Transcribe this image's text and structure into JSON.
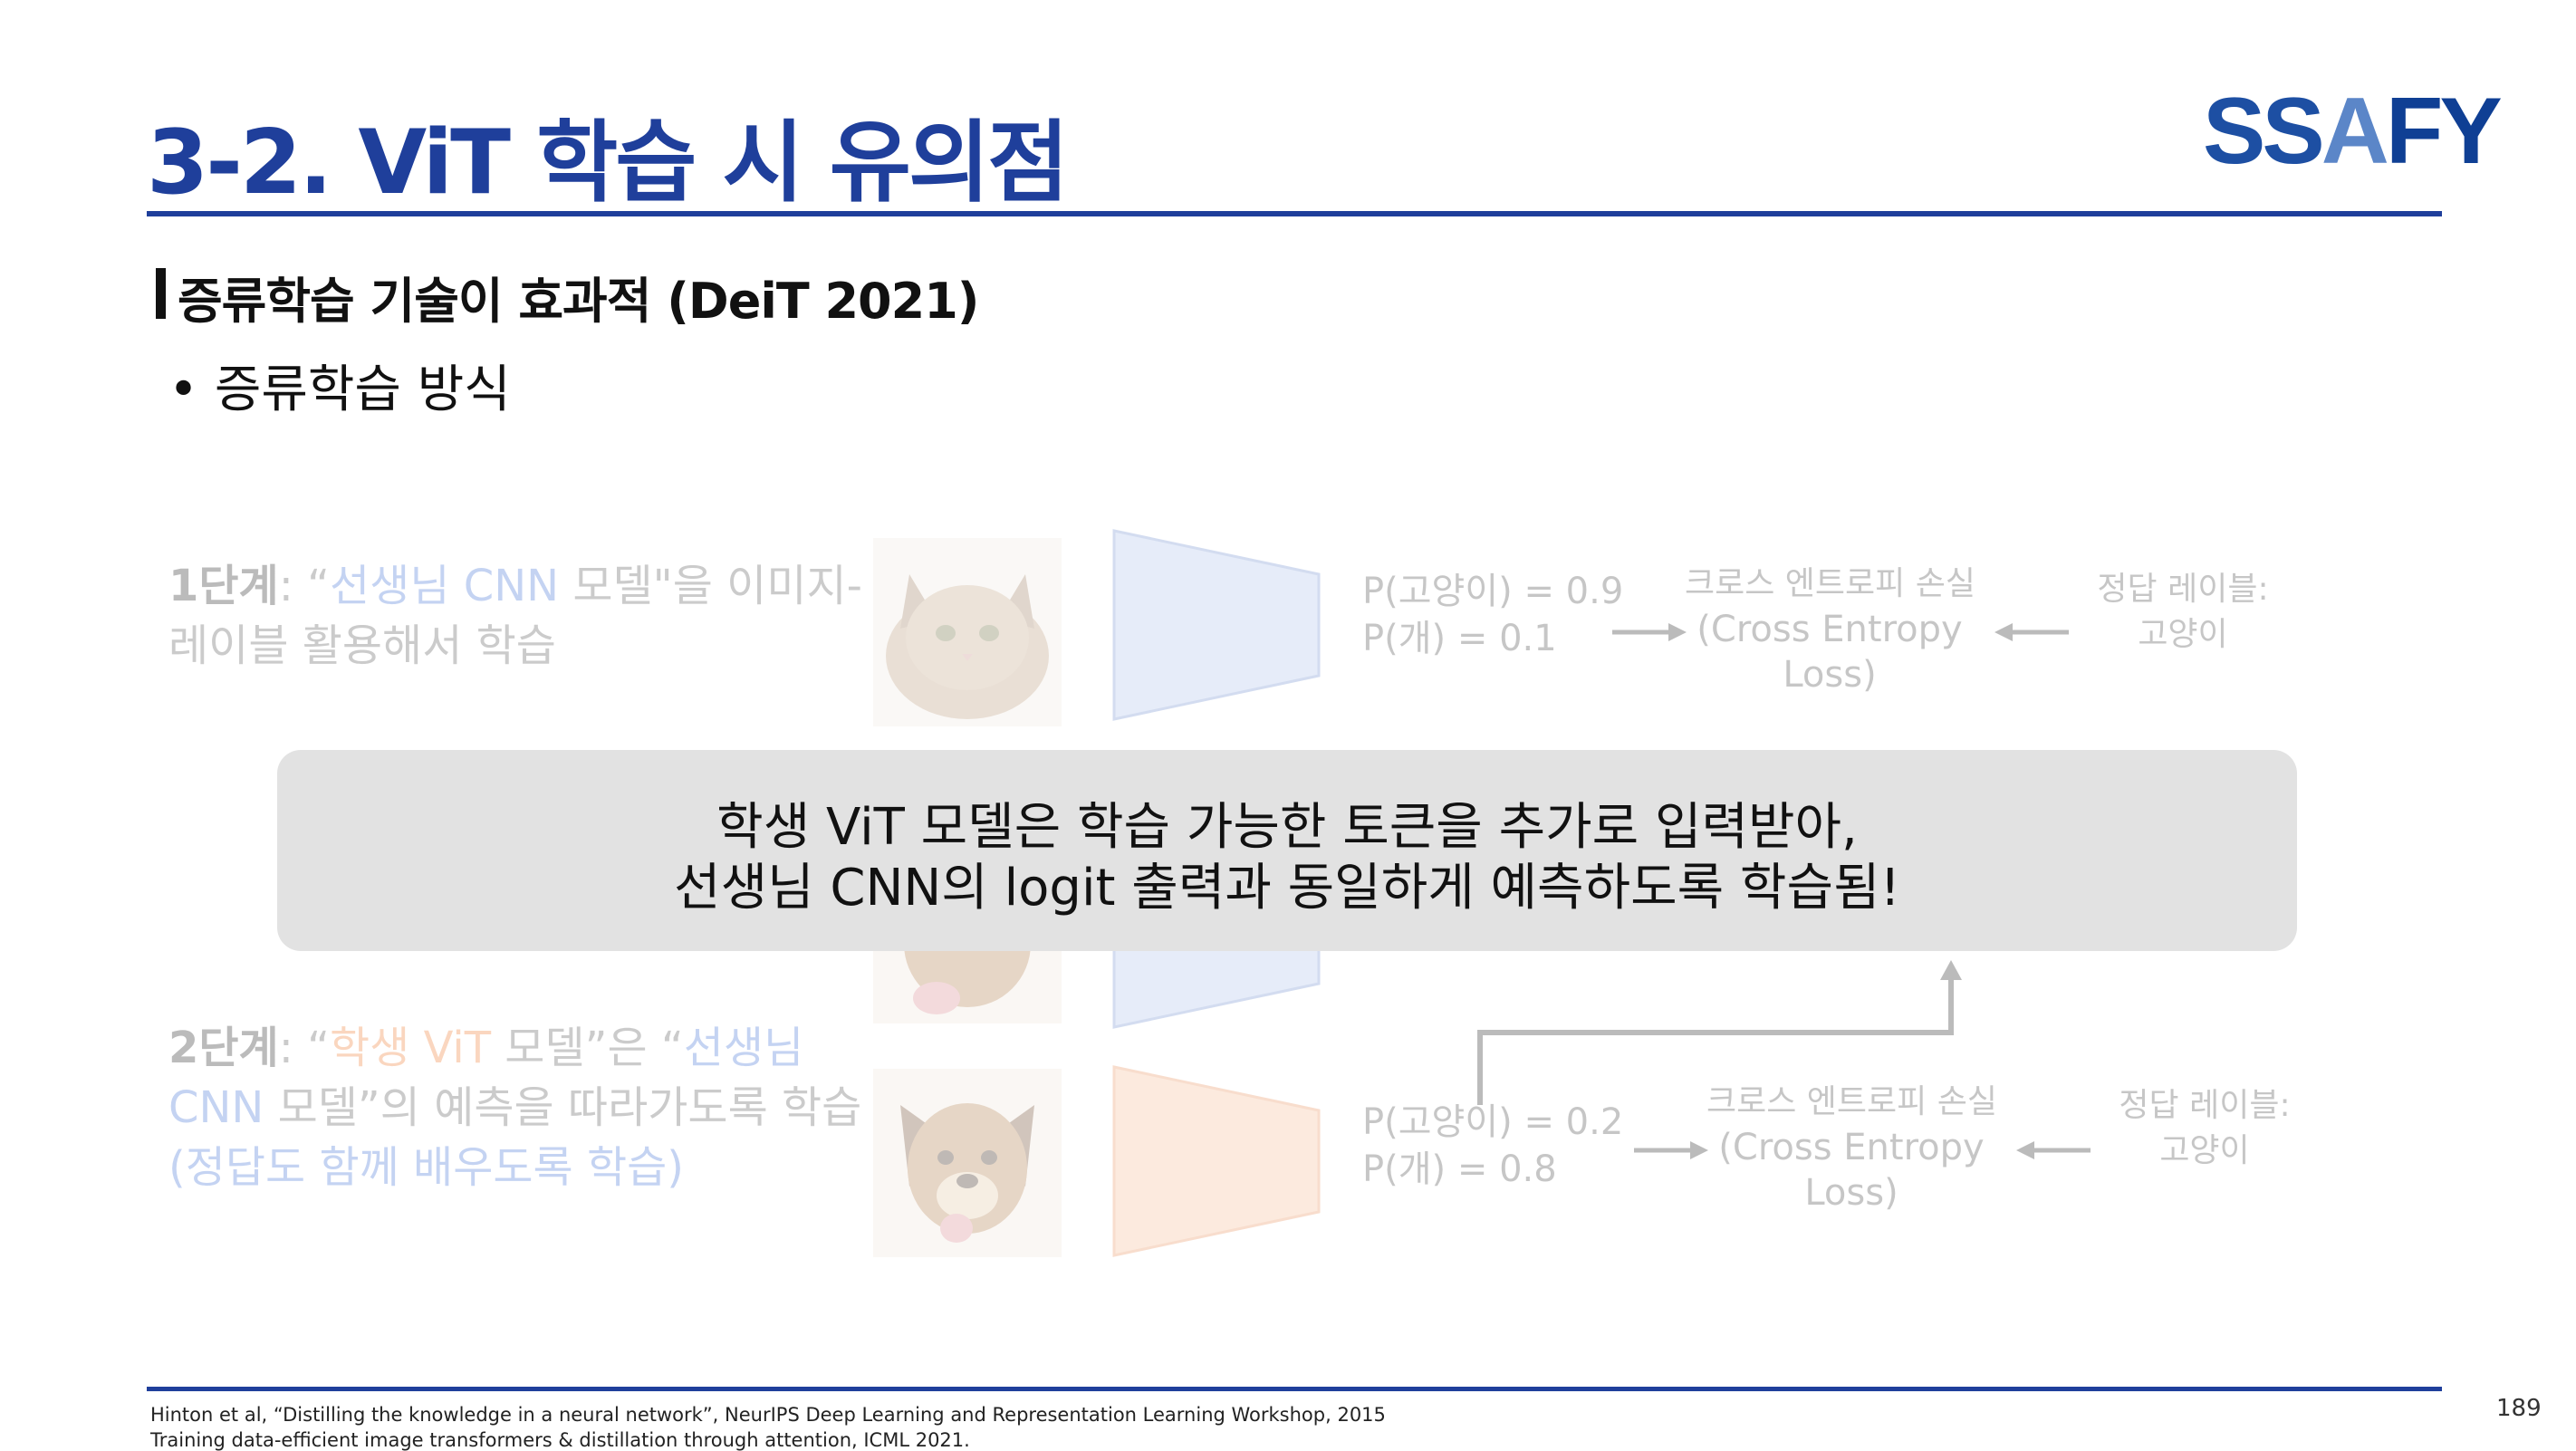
{
  "header": {
    "title": "3-2. ViT 학습 시 유의점",
    "logo_left": "SS",
    "logo_middle": "A",
    "logo_right": "FY"
  },
  "section": {
    "heading": "증류학습 기술이 효과적 (DeiT 2021)",
    "bullet": "• 증류학습 방식"
  },
  "step1": {
    "bold": "1단계",
    "sep": ": “",
    "highlight": "선생님 CNN",
    "rest_line1": " 모델\"을 이미지-",
    "line2": "레이블 활용해서 학습",
    "prob_cat": "P(고양이) = 0.9",
    "prob_dog": "P(개) = 0.1",
    "loss_ko": "크로스 엔트로피 손실",
    "loss_en1": "(Cross Entropy",
    "loss_en2": "Loss)",
    "label_title": "정답 레이블:",
    "label_value": "고양이"
  },
  "step2": {
    "bold": "2단계",
    "sep": ": “",
    "highlight_student": "학생 ViT",
    "mid_line1": " 모델”은 “",
    "highlight_teacher_1": "선생님",
    "highlight_teacher_2": "CNN",
    "rest_line2": " 모델”의 예측을 따라가도록 학습",
    "line3": "(정답도 함께 배우도록 학습)",
    "prob_cat": "P(고양이) = 0.2",
    "prob_dog": "P(개) = 0.8",
    "loss_ko": "크로스 엔트로피 손실",
    "loss_en1": "(Cross Entropy",
    "loss_en2": "Loss)",
    "label_title": "정답 레이블:",
    "label_value": "고양이"
  },
  "callout": {
    "line1": "학생 ViT 모델은 학습 가능한 토큰을 추가로 입력받아,",
    "line2": "선생님 CNN의 logit 출력과 동일하게 예측하도록 학습됨!"
  },
  "footer": {
    "ref1": "Hinton et al, “Distilling the knowledge in a neural network”, NeurIPS Deep Learning and Representation Learning Workshop, 2015",
    "ref2": "Training data-efficient image transformers & distillation through attention, ICML 2021.",
    "page_number": "189"
  },
  "colors": {
    "brand_blue": "#1f3f9b",
    "teacher_highlight": "#3f6fd6",
    "student_highlight": "#ef7b2e",
    "callout_bg": "#e2e2e2"
  },
  "icons": [
    "cat-photo",
    "dog-photo",
    "teacher-cnn-trapezoid",
    "student-vit-trapezoid",
    "arrow-right-icon",
    "arrow-left-icon",
    "arrow-up-icon"
  ]
}
